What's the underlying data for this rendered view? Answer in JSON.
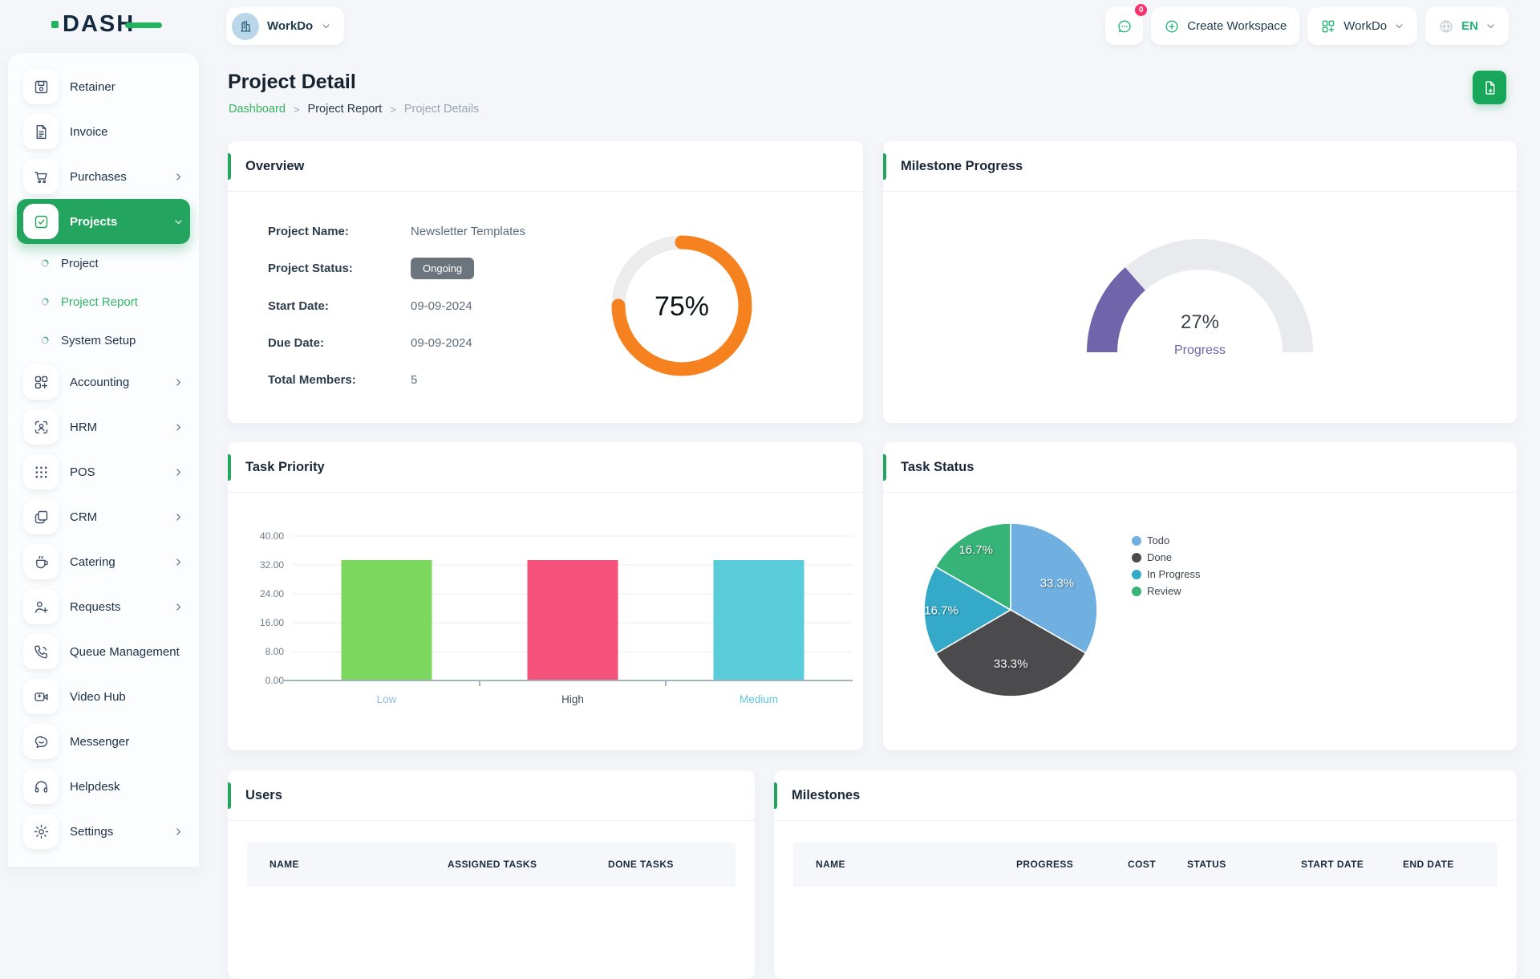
{
  "colors": {
    "primary_green": "#23a55f",
    "link_green": "#35b45f",
    "badge_red": "#f7316b",
    "status_gray": "#6c757d",
    "donut_orange": "#f5821f",
    "gauge_purple": "#7064ab"
  },
  "brand": {
    "logo_text": "DASH"
  },
  "header": {
    "workspace_selector": {
      "label": "WorkDo"
    },
    "chat_badge": "0",
    "create_workspace_label": "Create Workspace",
    "workdo_menu_label": "WorkDo",
    "language": "EN"
  },
  "sidebar": {
    "items": [
      {
        "label": "Retainer",
        "icon": "save-icon"
      },
      {
        "label": "Invoice",
        "icon": "file-text-icon"
      },
      {
        "label": "Purchases",
        "icon": "cart-icon",
        "chevron": "right"
      },
      {
        "label": "Projects",
        "icon": "check-square-icon",
        "chevron": "down",
        "active": true,
        "children": [
          {
            "label": "Project"
          },
          {
            "label": "Project Report",
            "active": true
          },
          {
            "label": "System Setup"
          }
        ]
      },
      {
        "label": "Accounting",
        "icon": "grid-plus-icon",
        "chevron": "right"
      },
      {
        "label": "HRM",
        "icon": "user-scan-icon",
        "chevron": "right"
      },
      {
        "label": "POS",
        "icon": "dots-grid-icon",
        "chevron": "right"
      },
      {
        "label": "CRM",
        "icon": "cards-icon",
        "chevron": "right"
      },
      {
        "label": "Catering",
        "icon": "coffee-icon",
        "chevron": "right"
      },
      {
        "label": "Requests",
        "icon": "user-plus-icon",
        "chevron": "right"
      },
      {
        "label": "Queue Management",
        "icon": "phone-icon",
        "chevron": "right"
      },
      {
        "label": "Video Hub",
        "icon": "video-icon"
      },
      {
        "label": "Messenger",
        "icon": "chat-bubble-icon"
      },
      {
        "label": "Helpdesk",
        "icon": "headset-icon"
      },
      {
        "label": "Settings",
        "icon": "gear-icon",
        "chevron": "right"
      }
    ]
  },
  "page": {
    "title": "Project Detail",
    "breadcrumb": [
      "Dashboard",
      "Project Report",
      "Project Details"
    ]
  },
  "overview": {
    "title": "Overview",
    "fields": [
      {
        "label": "Project Name:",
        "value": "Newsletter Templates"
      },
      {
        "label": "Project Status:",
        "value": "Ongoing",
        "badge": true
      },
      {
        "label": "Start Date:",
        "value": "09-09-2024"
      },
      {
        "label": "Due Date:",
        "value": "09-09-2024"
      },
      {
        "label": "Total Members:",
        "value": "5"
      }
    ],
    "donut": {
      "percent": 75,
      "label": "75%",
      "color": "#f5821f",
      "track": "#ececec"
    }
  },
  "milestone_progress": {
    "title": "Milestone Progress",
    "percent": 27,
    "label": "27%",
    "sublabel": "Progress",
    "color": "#7064ab",
    "track": "#e9eaee"
  },
  "chart_data": [
    {
      "type": "bar",
      "title": "Task Priority",
      "categories": [
        "Low",
        "High",
        "Medium"
      ],
      "values": [
        33.33,
        33.33,
        33.33
      ],
      "colors": [
        "#7bd75d",
        "#f4517b",
        "#58cdd9"
      ],
      "category_label_colors": [
        "#8cbbe8",
        "#3f4a55",
        "#5fc6de"
      ],
      "xlabel": "",
      "ylabel": "",
      "ylim": [
        0,
        40
      ],
      "ytick_step": 8,
      "ytick_decimals": 2,
      "grid": true,
      "legend": false
    },
    {
      "type": "pie",
      "title": "Task Status",
      "labels": [
        "Todo",
        "Done",
        "In Progress",
        "Review"
      ],
      "values": [
        33.3,
        33.3,
        16.7,
        16.7
      ],
      "slice_labels": [
        "33.3%",
        "33.3%",
        "16.7%",
        "16.7%"
      ],
      "colors": [
        "#6fb0e0",
        "#4b4b4d",
        "#35aac8",
        "#36b376"
      ],
      "legend_position": "right"
    }
  ],
  "users_table": {
    "title": "Users",
    "columns": [
      "NAME",
      "ASSIGNED TASKS",
      "DONE TASKS"
    ]
  },
  "milestones_table": {
    "title": "Milestones",
    "columns": [
      "NAME",
      "PROGRESS",
      "COST",
      "STATUS",
      "START DATE",
      "END DATE"
    ]
  }
}
